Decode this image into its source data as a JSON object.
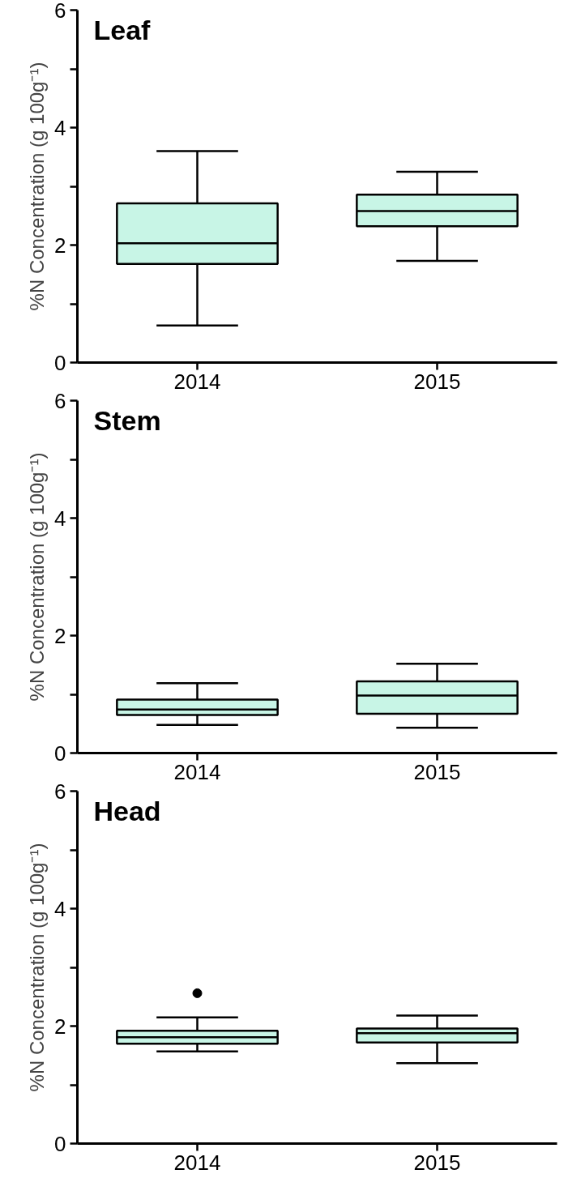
{
  "chart_data": [
    {
      "type": "box",
      "title": "Leaf",
      "ylabel": "%N Concentration (g 100g⁻¹)",
      "categories": [
        "2014",
        "2015"
      ],
      "ylim": [
        0,
        6
      ],
      "yticks": [
        0,
        {
          "value": 1,
          "label": null
        },
        2,
        {
          "value": 3,
          "label": null
        },
        4,
        {
          "value": 5,
          "label": null
        },
        6
      ],
      "color": "#c8f5e6",
      "grid": false,
      "boxes": [
        {
          "low": 0.63,
          "q1": 1.68,
          "median": 2.03,
          "q3": 2.71,
          "high": 3.6
        },
        {
          "low": 1.73,
          "q1": 2.32,
          "median": 2.58,
          "q3": 2.86,
          "high": 3.25
        }
      ]
    },
    {
      "type": "box",
      "title": "Stem",
      "ylabel": "%N Concentration (g 100g⁻¹)",
      "categories": [
        "2014",
        "2015"
      ],
      "ylim": [
        0,
        6
      ],
      "yticks": [
        0,
        {
          "value": 1,
          "label": null
        },
        2,
        {
          "value": 3,
          "label": null
        },
        4,
        {
          "value": 5,
          "label": null
        },
        6
      ],
      "color": "#c8f5e6",
      "grid": false,
      "boxes": [
        {
          "low": 0.48,
          "q1": 0.65,
          "median": 0.74,
          "q3": 0.91,
          "high": 1.19
        },
        {
          "low": 0.43,
          "q1": 0.67,
          "median": 0.98,
          "q3": 1.22,
          "high": 1.52
        }
      ]
    },
    {
      "type": "box",
      "title": "Head",
      "ylabel": "%N Concentration (g 100g⁻¹)",
      "categories": [
        "2014",
        "2015"
      ],
      "ylim": [
        0,
        6
      ],
      "yticks": [
        0,
        {
          "value": 1,
          "label": null
        },
        2,
        {
          "value": 3,
          "label": null
        },
        4,
        {
          "value": 5,
          "label": null
        },
        6
      ],
      "color": "#c8f5e6",
      "grid": false,
      "boxes": [
        {
          "low": 1.57,
          "q1": 1.7,
          "median": 1.81,
          "q3": 1.92,
          "high": 2.15,
          "outliers": [
            2.56
          ]
        },
        {
          "low": 1.37,
          "q1": 1.72,
          "median": 1.88,
          "q3": 1.96,
          "high": 2.18
        }
      ]
    }
  ]
}
